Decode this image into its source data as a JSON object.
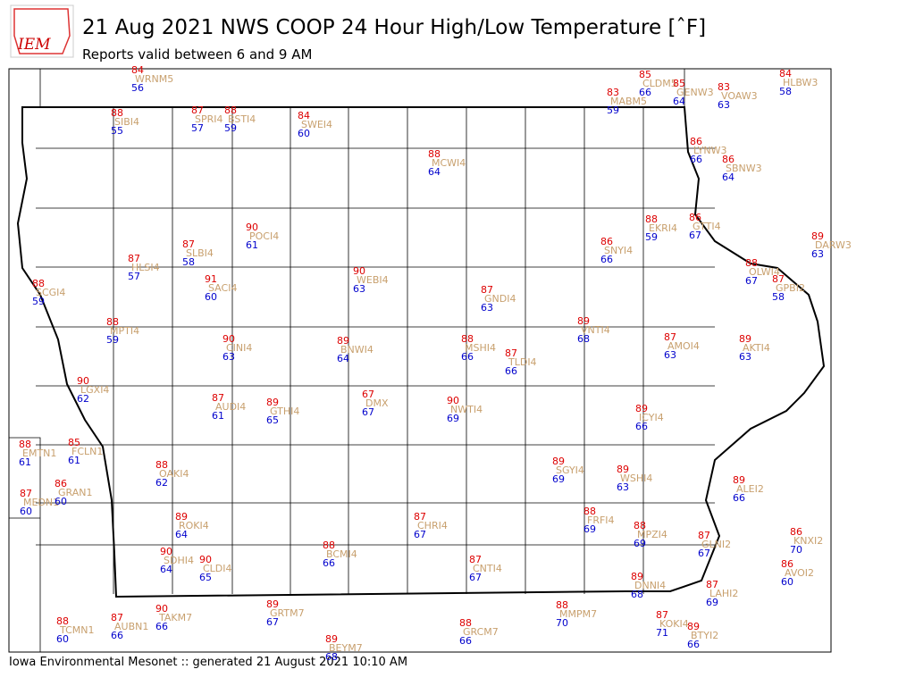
{
  "header": {
    "logo": "IEM",
    "title": "21 Aug 2021 NWS COOP 24 Hour High/Low Temperature [ˆF]",
    "subtitle": "Reports valid between 6 and 9 AM"
  },
  "footer": "Iowa Environmental Mesonet :: generated 21 August 2021 10:10 AM",
  "stations": [
    {
      "id": "WRNM5",
      "high": 84,
      "low": 56
    },
    {
      "id": "CLDM5",
      "high": 85,
      "low": 66
    },
    {
      "id": "GENW3",
      "high": 85,
      "low": 64
    },
    {
      "id": "MABM5",
      "high": 83,
      "low": 59
    },
    {
      "id": "VOAW3",
      "high": 83,
      "low": 63
    },
    {
      "id": "HLBW3",
      "high": 84,
      "low": 58
    },
    {
      "id": "SIBI4",
      "high": 88,
      "low": 55
    },
    {
      "id": "SPRI4",
      "high": 87,
      "low": 57
    },
    {
      "id": "BSTI4",
      "high": 88,
      "low": 59
    },
    {
      "id": "SWEI4",
      "high": 84,
      "low": 60
    },
    {
      "id": "MCWI4",
      "high": 88,
      "low": 64
    },
    {
      "id": "LYNW3",
      "high": 86,
      "low": 66
    },
    {
      "id": "SBNW3",
      "high": 86,
      "low": 64
    },
    {
      "id": "POCI4",
      "high": 90,
      "low": 61
    },
    {
      "id": "EKRI4",
      "high": 88,
      "low": 59
    },
    {
      "id": "GTTI4",
      "high": 86,
      "low": 67
    },
    {
      "id": "SNYI4",
      "high": 86,
      "low": 66
    },
    {
      "id": "DARW3",
      "high": 89,
      "low": 63
    },
    {
      "id": "SLBI4",
      "high": 87,
      "low": 58
    },
    {
      "id": "HLSI4",
      "high": 87,
      "low": 57
    },
    {
      "id": "SCGI4",
      "high": 88,
      "low": 59
    },
    {
      "id": "SACI4",
      "high": 91,
      "low": 60
    },
    {
      "id": "WEBI4",
      "high": 90,
      "low": 63
    },
    {
      "id": "OLWI4",
      "high": 88,
      "low": 67
    },
    {
      "id": "GPBI2",
      "high": 87,
      "low": 58
    },
    {
      "id": "GNDI4",
      "high": 87,
      "low": 63
    },
    {
      "id": "MPTI4",
      "high": 88,
      "low": 59
    },
    {
      "id": "VNTI4",
      "high": 89,
      "low": 68
    },
    {
      "id": "CINI4",
      "high": 90,
      "low": 63
    },
    {
      "id": "BNWI4",
      "high": 89,
      "low": 64
    },
    {
      "id": "MSHI4",
      "high": 88,
      "low": 66
    },
    {
      "id": "TLDI4",
      "high": 87,
      "low": 66
    },
    {
      "id": "AMOI4",
      "high": 87,
      "low": 63
    },
    {
      "id": "AKTI4",
      "high": 89,
      "low": 63
    },
    {
      "id": "LGXI4",
      "high": 90,
      "low": 62
    },
    {
      "id": "AUDI4",
      "high": 87,
      "low": 61
    },
    {
      "id": "GTHI4",
      "high": 89,
      "low": 65
    },
    {
      "id": "DMX",
      "high": 67,
      "low": 67
    },
    {
      "id": "NWTI4",
      "high": 90,
      "low": 69
    },
    {
      "id": "ICYI4",
      "high": 89,
      "low": 66
    },
    {
      "id": "EMTN1",
      "high": 88,
      "low": 61
    },
    {
      "id": "FCLN1",
      "high": 85,
      "low": 61
    },
    {
      "id": "OAKI4",
      "high": 88,
      "low": 62
    },
    {
      "id": "SGYI4",
      "high": 89,
      "low": 69
    },
    {
      "id": "WSHI4",
      "high": 89,
      "low": 63
    },
    {
      "id": "MEDN1",
      "high": 87,
      "low": 60
    },
    {
      "id": "GRAN1",
      "high": 86,
      "low": 60
    },
    {
      "id": "ALEI2",
      "high": 89,
      "low": 66
    },
    {
      "id": "ROKI4",
      "high": 89,
      "low": 64
    },
    {
      "id": "CHRI4",
      "high": 87,
      "low": 67
    },
    {
      "id": "FRFI4",
      "high": 88,
      "low": 69
    },
    {
      "id": "MPZI4",
      "high": 88,
      "low": 69
    },
    {
      "id": "GLNI2",
      "high": 87,
      "low": 67
    },
    {
      "id": "KNXI2",
      "high": 86,
      "low": 70
    },
    {
      "id": "SDHI4",
      "high": 90,
      "low": 64
    },
    {
      "id": "CLDI4",
      "high": 90,
      "low": 65
    },
    {
      "id": "BCMI4",
      "high": 88,
      "low": 66
    },
    {
      "id": "CNTI4",
      "high": 87,
      "low": 67
    },
    {
      "id": "AVOI2",
      "high": 86,
      "low": 60
    },
    {
      "id": "DNNI4",
      "high": 89,
      "low": 68
    },
    {
      "id": "LAHI2",
      "high": 87,
      "low": 69
    },
    {
      "id": "TAKM7",
      "high": 90,
      "low": 66
    },
    {
      "id": "GRTM7",
      "high": 89,
      "low": 67
    },
    {
      "id": "MMPM7",
      "high": 88,
      "low": 70
    },
    {
      "id": "TCMN1",
      "high": 88,
      "low": 60
    },
    {
      "id": "AUBN1",
      "high": 87,
      "low": 66
    },
    {
      "id": "GRCM7",
      "high": 88,
      "low": 66
    },
    {
      "id": "KOKI4",
      "high": 87,
      "low": 71
    },
    {
      "id": "BTYI2",
      "high": 89,
      "low": 66
    },
    {
      "id": "BEYM7",
      "high": 89,
      "low": 68
    }
  ]
}
